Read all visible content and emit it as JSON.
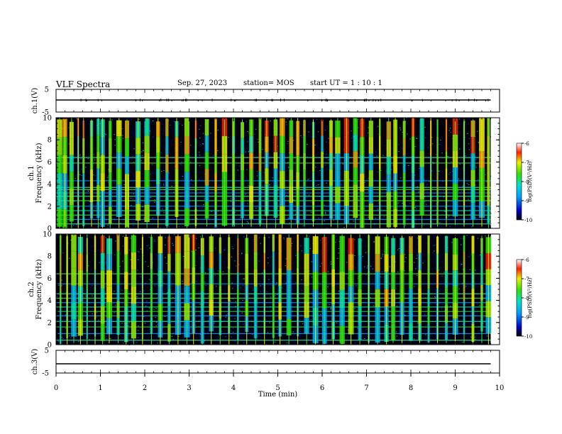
{
  "header": {
    "title": "VLF Spectra",
    "date": "Sep. 27, 2023",
    "station": "station= MOS",
    "start_ut": "start  UT =   1 : 10 : 1"
  },
  "chart_data": [
    {
      "type": "line",
      "panel": "ch1-waveform",
      "ylabel": "ch.1(V)",
      "ylim": [
        -5,
        5
      ],
      "yticks": [
        "5",
        "-5"
      ],
      "xlim": [
        0,
        10
      ],
      "series": [
        {
          "x": [
            0,
            9.8
          ],
          "y": [
            0,
            0
          ]
        }
      ]
    },
    {
      "type": "heatmap",
      "panel": "ch1-spectrogram",
      "ylabel": "ch.1",
      "ylabel2": "Frequency (kHz)",
      "ylim": [
        0,
        10
      ],
      "yticks": [
        "0",
        "2",
        "4",
        "6",
        "8",
        "10"
      ],
      "xlim": [
        0,
        10
      ],
      "data_end_min": 9.8,
      "colorbar": {
        "label": "log(PSD)(V²/Hz)",
        "range": [
          -10,
          -6
        ],
        "ticks": [
          "-6",
          "-7",
          "-8",
          "-9",
          "-10"
        ]
      },
      "horizontal_lines_khz": [
        0.4,
        0.8,
        1.2,
        1.6,
        2.0,
        2.5,
        2.9,
        3.2,
        3.5,
        3.7,
        4.3,
        5.9,
        6.4
      ],
      "bursts_min": [
        0.08,
        0.2,
        0.35,
        0.5,
        0.62,
        0.8,
        0.95,
        1.05,
        1.22,
        1.42,
        1.6,
        1.85,
        2.05,
        2.3,
        2.5,
        2.72,
        2.95,
        3.15,
        3.4,
        3.6,
        3.8,
        4.0,
        4.2,
        4.4,
        4.6,
        4.75,
        4.95,
        5.1,
        5.3,
        5.45,
        5.6,
        5.8,
        6.0,
        6.2,
        6.35,
        6.55,
        6.75,
        6.9,
        7.1,
        7.3,
        7.5,
        7.65,
        7.85,
        8.05,
        8.25,
        8.45,
        8.6,
        8.8,
        9.0,
        9.2,
        9.4,
        9.6,
        9.75
      ]
    },
    {
      "type": "heatmap",
      "panel": "ch2-spectrogram",
      "ylabel": "ch.2",
      "ylabel2": "Frequency (kHz)",
      "ylim": [
        0,
        10
      ],
      "yticks": [
        "0",
        "2",
        "4",
        "6",
        "8",
        "10"
      ],
      "xlim": [
        0,
        10
      ],
      "data_end_min": 9.8,
      "colorbar": {
        "label": "log(PSD)(V²/Hz)",
        "range": [
          -10,
          -6
        ],
        "ticks": [
          "-6",
          "-7",
          "-8",
          "-9",
          "-10"
        ]
      },
      "horizontal_lines_khz": [
        0.4,
        1.0,
        1.6,
        2.1,
        2.6,
        3.0,
        3.4,
        3.8,
        4.2,
        4.6,
        5.5,
        6.4
      ],
      "bursts_min": [
        0.1,
        0.25,
        0.4,
        0.55,
        0.7,
        0.88,
        1.05,
        1.2,
        1.4,
        1.58,
        1.75,
        1.95,
        2.15,
        2.35,
        2.55,
        2.75,
        2.95,
        3.1,
        3.3,
        3.5,
        3.7,
        3.9,
        4.1,
        4.3,
        4.5,
        4.7,
        4.9,
        5.05,
        5.25,
        5.45,
        5.65,
        5.85,
        6.05,
        6.25,
        6.45,
        6.65,
        6.85,
        7.05,
        7.25,
        7.45,
        7.6,
        7.8,
        8.0,
        8.2,
        8.4,
        8.6,
        8.8,
        9.0,
        9.2,
        9.4,
        9.6,
        9.75
      ]
    },
    {
      "type": "line",
      "panel": "ch3-waveform",
      "ylabel": "ch.3(V)",
      "ylim": [
        -5,
        5
      ],
      "yticks": [
        "5",
        "-5"
      ],
      "xlim": [
        0,
        10
      ],
      "xlabel": "Time (min)",
      "xticks": [
        "0",
        "1",
        "2",
        "3",
        "4",
        "5",
        "6",
        "7",
        "8",
        "9",
        "10"
      ],
      "series": [
        {
          "x": [
            0,
            9.8
          ],
          "y": [
            0,
            0
          ]
        }
      ]
    }
  ]
}
